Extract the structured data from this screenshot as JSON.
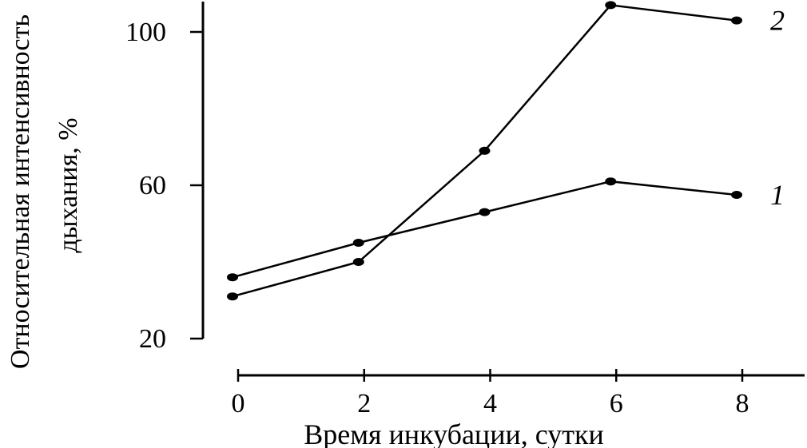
{
  "chart_data": {
    "type": "line",
    "xlabel": "Время инкубации, сутки",
    "ylabel_line1": "Относительная интенсивность",
    "ylabel_line2": "дыхания, %",
    "x_ticks": [
      0,
      2,
      4,
      6,
      8
    ],
    "y_ticks": [
      20,
      60,
      100
    ],
    "xlim": [
      0,
      8
    ],
    "ylim": [
      20,
      108
    ],
    "grid": false,
    "series": [
      {
        "name": "1",
        "x": [
          0,
          2,
          4,
          6,
          8
        ],
        "y": [
          36,
          45,
          53,
          61,
          57.5
        ]
      },
      {
        "name": "2",
        "x": [
          0,
          2,
          4,
          6,
          8
        ],
        "y": [
          31,
          40,
          69,
          107,
          103
        ]
      }
    ]
  }
}
